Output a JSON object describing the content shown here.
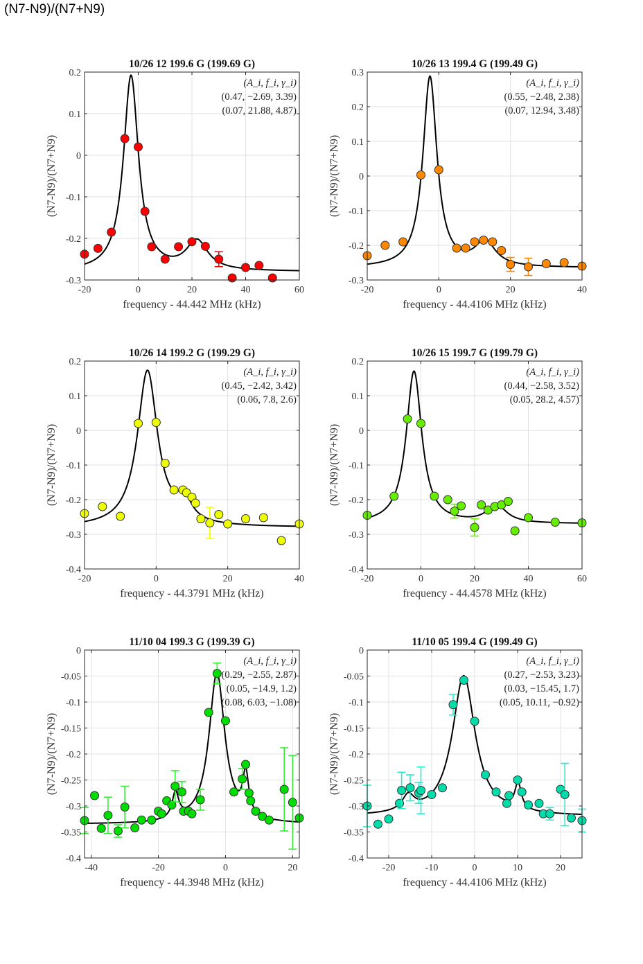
{
  "page_title": "(N7-N9)/(N7+N9)",
  "legend_header": "(A_i, f_i, γ_i)",
  "chart_data": [
    {
      "type": "scatter",
      "title": "10/26 12 199.6 G (199.69 G)",
      "xlabel": "frequency - 44.442 MHz (kHz)",
      "ylabel": "(N7-N9)/(N7+N9)",
      "xlim": [
        -20,
        60
      ],
      "ylim": [
        -0.3,
        0.2
      ],
      "xticks": [
        -20,
        0,
        20,
        40,
        60
      ],
      "xtick_labels": [
        "-20",
        "0",
        "20",
        "40",
        "60"
      ],
      "yticks": [
        -0.3,
        -0.2,
        -0.1,
        0,
        0.1,
        0.2
      ],
      "ytick_labels": [
        "-0.3",
        "-0.2",
        "-0.1",
        "0",
        "0.1",
        "0.2"
      ],
      "grid": true,
      "marker_color": "#ff0000",
      "error_color": "#ff0000",
      "fit_params": [
        "(0.47, −2.69, 3.39)",
        "(0.07, 21.88, 4.87)"
      ],
      "fit": {
        "offset": -0.28,
        "peaks": [
          [
            0.47,
            -2.69,
            3.39
          ],
          [
            0.07,
            21.88,
            4.87
          ]
        ]
      },
      "points": [
        {
          "x": -20,
          "y": -0.238
        },
        {
          "x": -15,
          "y": -0.224
        },
        {
          "x": -10,
          "y": -0.185
        },
        {
          "x": -5,
          "y": 0.04
        },
        {
          "x": 0,
          "y": 0.02
        },
        {
          "x": 2.5,
          "y": -0.135
        },
        {
          "x": 5,
          "y": -0.22
        },
        {
          "x": 10,
          "y": -0.25
        },
        {
          "x": 15,
          "y": -0.22
        },
        {
          "x": 20,
          "y": -0.208
        },
        {
          "x": 25,
          "y": -0.219
        },
        {
          "x": 30,
          "y": -0.25,
          "err": 0.018
        },
        {
          "x": 35,
          "y": -0.295
        },
        {
          "x": 40,
          "y": -0.27
        },
        {
          "x": 45,
          "y": -0.265
        },
        {
          "x": 50,
          "y": -0.295
        }
      ]
    },
    {
      "type": "scatter",
      "title": "10/26 13 199.4 G (199.49 G)",
      "xlabel": "frequency - 44.4106 MHz (kHz)",
      "ylabel": "(N7-N9)/(N7+N9)",
      "xlim": [
        -20,
        40
      ],
      "ylim": [
        -0.3,
        0.3
      ],
      "xticks": [
        -20,
        0,
        20,
        40
      ],
      "xtick_labels": [
        "-20",
        "0",
        "20",
        "40"
      ],
      "yticks": [
        -0.3,
        -0.2,
        -0.1,
        0,
        0.1,
        0.2,
        0.3
      ],
      "ytick_labels": [
        "-0.3",
        "-0.2",
        "-0.1",
        "0",
        "0.1",
        "0.2",
        "0.3"
      ],
      "grid": true,
      "marker_color": "#ff8800",
      "error_color": "#ff8800",
      "fit_params": [
        "(0.55, −2.48, 2.38)",
        "(0.07, 12.94, 3.48)"
      ],
      "fit": {
        "offset": -0.265,
        "peaks": [
          [
            0.55,
            -2.48,
            2.38
          ],
          [
            0.07,
            12.94,
            3.48
          ]
        ]
      },
      "points": [
        {
          "x": -20,
          "y": -0.23
        },
        {
          "x": -15,
          "y": -0.2
        },
        {
          "x": -10,
          "y": -0.19
        },
        {
          "x": -5,
          "y": 0.003
        },
        {
          "x": 0,
          "y": 0.018
        },
        {
          "x": 5,
          "y": -0.208
        },
        {
          "x": 7.5,
          "y": -0.208
        },
        {
          "x": 10,
          "y": -0.19
        },
        {
          "x": 12.5,
          "y": -0.185
        },
        {
          "x": 15,
          "y": -0.19
        },
        {
          "x": 17.5,
          "y": -0.215
        },
        {
          "x": 20,
          "y": -0.255,
          "err": 0.02
        },
        {
          "x": 25,
          "y": -0.262,
          "err": 0.025
        },
        {
          "x": 30,
          "y": -0.253
        },
        {
          "x": 35,
          "y": -0.25
        },
        {
          "x": 40,
          "y": -0.26
        }
      ]
    },
    {
      "type": "scatter",
      "title": "10/26 14 199.2 G (199.29 G)",
      "xlabel": "frequency - 44.3791 MHz (kHz)",
      "ylabel": "(N7-N9)/(N7+N9)",
      "xlim": [
        -20,
        40
      ],
      "ylim": [
        -0.4,
        0.2
      ],
      "xticks": [
        -20,
        0,
        20,
        40
      ],
      "xtick_labels": [
        "-20",
        "0",
        "20",
        "40"
      ],
      "yticks": [
        -0.4,
        -0.3,
        -0.2,
        -0.1,
        0,
        0.1,
        0.2
      ],
      "ytick_labels": [
        "-0.4",
        "-0.3",
        "-0.2",
        "-0.1",
        "0",
        "0.1",
        "0.2"
      ],
      "grid": true,
      "marker_color": "#eeff00",
      "error_color": "#eeff00",
      "fit_params": [
        "(0.45, −2.42, 3.42)",
        "(0.06, 7.8, 2.6)"
      ],
      "fit": {
        "offset": -0.28,
        "peaks": [
          [
            0.45,
            -2.42,
            3.42
          ],
          [
            0.06,
            7.8,
            2.6
          ]
        ]
      },
      "points": [
        {
          "x": -20,
          "y": -0.24
        },
        {
          "x": -15,
          "y": -0.22
        },
        {
          "x": -10,
          "y": -0.248
        },
        {
          "x": -5,
          "y": 0.02
        },
        {
          "x": 0,
          "y": 0.023
        },
        {
          "x": 2.5,
          "y": -0.095
        },
        {
          "x": 5,
          "y": -0.172
        },
        {
          "x": 7.5,
          "y": -0.172
        },
        {
          "x": 8.5,
          "y": -0.18
        },
        {
          "x": 10,
          "y": -0.193
        },
        {
          "x": 11,
          "y": -0.21
        },
        {
          "x": 12.5,
          "y": -0.255
        },
        {
          "x": 15,
          "y": -0.267,
          "err": 0.045
        },
        {
          "x": 17.5,
          "y": -0.243
        },
        {
          "x": 20,
          "y": -0.27
        },
        {
          "x": 25,
          "y": -0.255
        },
        {
          "x": 30,
          "y": -0.252
        },
        {
          "x": 35,
          "y": -0.318
        },
        {
          "x": 40,
          "y": -0.27
        }
      ]
    },
    {
      "type": "scatter",
      "title": "10/26 15 199.7 G (199.79 G)",
      "xlabel": "frequency - 44.4578 MHz (kHz)",
      "ylabel": "(N7-N9)/(N7+N9)",
      "xlim": [
        -20,
        60
      ],
      "ylim": [
        -0.4,
        0.2
      ],
      "xticks": [
        -20,
        0,
        20,
        40,
        60
      ],
      "xtick_labels": [
        "-20",
        "0",
        "20",
        "40",
        "60"
      ],
      "yticks": [
        -0.4,
        -0.3,
        -0.2,
        -0.1,
        0,
        0.1,
        0.2
      ],
      "ytick_labels": [
        "-0.4",
        "-0.3",
        "-0.2",
        "-0.1",
        "0",
        "0.1",
        "0.2"
      ],
      "grid": true,
      "marker_color": "#66ee00",
      "error_color": "#66ee00",
      "fit_params": [
        "(0.44, −2.58, 3.52)",
        "(0.05, 28.2, 4.57)"
      ],
      "fit": {
        "offset": -0.27,
        "peaks": [
          [
            0.44,
            -2.58,
            3.52
          ],
          [
            0.05,
            28.2,
            4.57
          ]
        ]
      },
      "points": [
        {
          "x": -20,
          "y": -0.245
        },
        {
          "x": -10,
          "y": -0.19
        },
        {
          "x": -5,
          "y": 0.033
        },
        {
          "x": 0,
          "y": 0.02
        },
        {
          "x": 5,
          "y": -0.19
        },
        {
          "x": 10,
          "y": -0.2
        },
        {
          "x": 12.5,
          "y": -0.233,
          "err": 0.02
        },
        {
          "x": 15,
          "y": -0.218
        },
        {
          "x": 20,
          "y": -0.28,
          "err": 0.025
        },
        {
          "x": 22.5,
          "y": -0.215
        },
        {
          "x": 25,
          "y": -0.23
        },
        {
          "x": 27.5,
          "y": -0.22
        },
        {
          "x": 30,
          "y": -0.215
        },
        {
          "x": 32.5,
          "y": -0.205
        },
        {
          "x": 35,
          "y": -0.29
        },
        {
          "x": 40,
          "y": -0.252
        },
        {
          "x": 50,
          "y": -0.265
        },
        {
          "x": 60,
          "y": -0.267
        }
      ]
    },
    {
      "type": "scatter",
      "title": "11/10 04 199.3 G (199.39 G)",
      "xlabel": "frequency - 44.3948 MHz (kHz)",
      "ylabel": "(N7-N9)/(N7+N9)",
      "xlim": [
        -42,
        22
      ],
      "ylim": [
        -0.4,
        0
      ],
      "xticks": [
        -40,
        -20,
        0,
        20
      ],
      "xtick_labels": [
        "-40",
        "-20",
        "0",
        "20"
      ],
      "yticks": [
        -0.4,
        -0.35,
        -0.3,
        -0.25,
        -0.2,
        -0.15,
        -0.1,
        -0.05,
        0
      ],
      "ytick_labels": [
        "-0.4",
        "-0.35",
        "-0.3",
        "-0.25",
        "-0.2",
        "-0.15",
        "-0.1",
        "-0.05",
        "0"
      ],
      "grid": true,
      "marker_color": "#00dd00",
      "error_color": "#33ee33",
      "fit_params": [
        "(0.29, −2.55, 2.87)",
        "(0.05, −14.9, 1.2)",
        "(0.08, 6.03, −1.08)"
      ],
      "fit": {
        "offset": -0.335,
        "peaks": [
          [
            0.29,
            -2.55,
            2.87
          ],
          [
            0.05,
            -14.9,
            1.2
          ],
          [
            0.08,
            6.03,
            1.08
          ]
        ]
      },
      "points": [
        {
          "x": -42,
          "y": -0.328,
          "err": 0.025
        },
        {
          "x": -39,
          "y": -0.28
        },
        {
          "x": -37,
          "y": -0.343
        },
        {
          "x": -35,
          "y": -0.318,
          "err": 0.035
        },
        {
          "x": -32,
          "y": -0.348,
          "err": 0.012
        },
        {
          "x": -30,
          "y": -0.302,
          "err": 0.04
        },
        {
          "x": -27,
          "y": -0.342
        },
        {
          "x": -25,
          "y": -0.327
        },
        {
          "x": -22,
          "y": -0.327
        },
        {
          "x": -20,
          "y": -0.31
        },
        {
          "x": -19,
          "y": -0.315
        },
        {
          "x": -17.5,
          "y": -0.29
        },
        {
          "x": -16,
          "y": -0.298
        },
        {
          "x": -15,
          "y": -0.262,
          "err": 0.03
        },
        {
          "x": -13,
          "y": -0.273,
          "err": 0.02
        },
        {
          "x": -12.5,
          "y": -0.31
        },
        {
          "x": -11,
          "y": -0.31
        },
        {
          "x": -10,
          "y": -0.315
        },
        {
          "x": -7.5,
          "y": -0.288,
          "err": 0.02
        },
        {
          "x": -5,
          "y": -0.12
        },
        {
          "x": -2.5,
          "y": -0.045,
          "err": 0.02
        },
        {
          "x": 0,
          "y": -0.136
        },
        {
          "x": 2.5,
          "y": -0.273
        },
        {
          "x": 5,
          "y": -0.248,
          "err": 0.02
        },
        {
          "x": 6,
          "y": -0.22
        },
        {
          "x": 7,
          "y": -0.275
        },
        {
          "x": 7.5,
          "y": -0.29
        },
        {
          "x": 9,
          "y": -0.31
        },
        {
          "x": 11,
          "y": -0.32
        },
        {
          "x": 13,
          "y": -0.327
        },
        {
          "x": 17.5,
          "y": -0.268,
          "err": 0.08
        },
        {
          "x": 20,
          "y": -0.293,
          "err": 0.09
        },
        {
          "x": 22,
          "y": -0.323
        }
      ]
    },
    {
      "type": "scatter",
      "title": "11/10 05 199.4 G (199.49 G)",
      "xlabel": "frequency - 44.4106 MHz (kHz)",
      "ylabel": "(N7-N9)/(N7+N9)",
      "xlim": [
        -25,
        25
      ],
      "ylim": [
        -0.4,
        0
      ],
      "xticks": [
        -20,
        -10,
        0,
        10,
        20
      ],
      "xtick_labels": [
        "-20",
        "-10",
        "0",
        "10",
        "20"
      ],
      "yticks": [
        -0.4,
        -0.35,
        -0.3,
        -0.25,
        -0.2,
        -0.15,
        -0.1,
        -0.05,
        0
      ],
      "ytick_labels": [
        "-0.4",
        "-0.35",
        "-0.3",
        "-0.25",
        "-0.2",
        "-0.15",
        "-0.1",
        "-0.05",
        "0"
      ],
      "grid": true,
      "marker_color": "#00ddaa",
      "error_color": "#22eecc",
      "fit_params": [
        "(0.27, −2.53, 3.23)",
        "(0.03, −15.45, 1.7)",
        "(0.05, 10.11, −0.92)"
      ],
      "fit": {
        "offset": -0.32,
        "peaks": [
          [
            0.27,
            -2.53,
            3.23
          ],
          [
            0.03,
            -15.45,
            1.7
          ],
          [
            0.05,
            10.11,
            0.92
          ]
        ]
      },
      "points": [
        {
          "x": -25,
          "y": -0.3,
          "err": 0.04
        },
        {
          "x": -22.5,
          "y": -0.335
        },
        {
          "x": -20,
          "y": -0.325
        },
        {
          "x": -17.5,
          "y": -0.295
        },
        {
          "x": -17,
          "y": -0.27,
          "err": 0.035
        },
        {
          "x": -15,
          "y": -0.265,
          "err": 0.025
        },
        {
          "x": -13,
          "y": -0.275,
          "err": 0.02
        },
        {
          "x": -12.5,
          "y": -0.27,
          "err": 0.045
        },
        {
          "x": -10,
          "y": -0.278
        },
        {
          "x": -7.5,
          "y": -0.265
        },
        {
          "x": -5,
          "y": -0.105,
          "err": 0.02
        },
        {
          "x": -2.5,
          "y": -0.058
        },
        {
          "x": 0,
          "y": -0.137
        },
        {
          "x": 2.5,
          "y": -0.24
        },
        {
          "x": 5,
          "y": -0.273
        },
        {
          "x": 7.5,
          "y": -0.295
        },
        {
          "x": 8,
          "y": -0.28
        },
        {
          "x": 10,
          "y": -0.25
        },
        {
          "x": 11,
          "y": -0.273
        },
        {
          "x": 12.5,
          "y": -0.298
        },
        {
          "x": 15,
          "y": -0.295
        },
        {
          "x": 16,
          "y": -0.315
        },
        {
          "x": 17.5,
          "y": -0.315,
          "err": 0.012
        },
        {
          "x": 20,
          "y": -0.268
        },
        {
          "x": 21,
          "y": -0.278,
          "err": 0.06
        },
        {
          "x": 22.5,
          "y": -0.323
        },
        {
          "x": 25,
          "y": -0.328,
          "err": 0.022
        }
      ]
    }
  ]
}
